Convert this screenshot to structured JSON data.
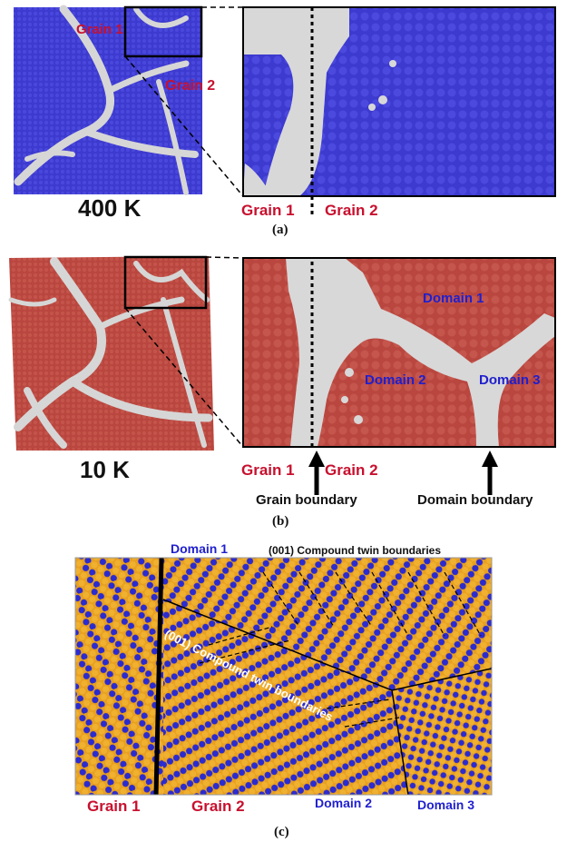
{
  "figure": {
    "panel_a": {
      "left_labels": {
        "grain1": "Grain 1",
        "grain2": "Grain 2"
      },
      "temperature": "400 K",
      "right_labels": {
        "grain1": "Grain 1",
        "grain2": "Grain 2"
      },
      "caption": "(a)",
      "colors": {
        "matrix": "#3d3ad0",
        "boundary": "#d4d4d4"
      }
    },
    "panel_b": {
      "temperature": "10 K",
      "right_labels": {
        "domain1": "Domain 1",
        "domain2": "Domain 2",
        "domain3": "Domain 3",
        "grain1": "Grain 1",
        "grain2": "Grain 2"
      },
      "annotations": {
        "grain_boundary": "Grain boundary",
        "domain_boundary": "Domain boundary"
      },
      "caption": "(b)",
      "colors": {
        "matrix": "#b9473f",
        "boundary": "#d4d4d4"
      }
    },
    "panel_c": {
      "top_labels": {
        "domain1": "Domain 1",
        "twin_top": "(001) Compound twin boundaries"
      },
      "diagonal_label": "(001) Compound twin boundaries",
      "bottom_labels": {
        "grain1": "Grain 1",
        "grain2": "Grain 2",
        "domain2": "Domain 2",
        "domain3": "Domain 3"
      },
      "caption": "(c)",
      "colors": {
        "orange": "#e8a020",
        "blue": "#2b2bd0"
      }
    }
  }
}
